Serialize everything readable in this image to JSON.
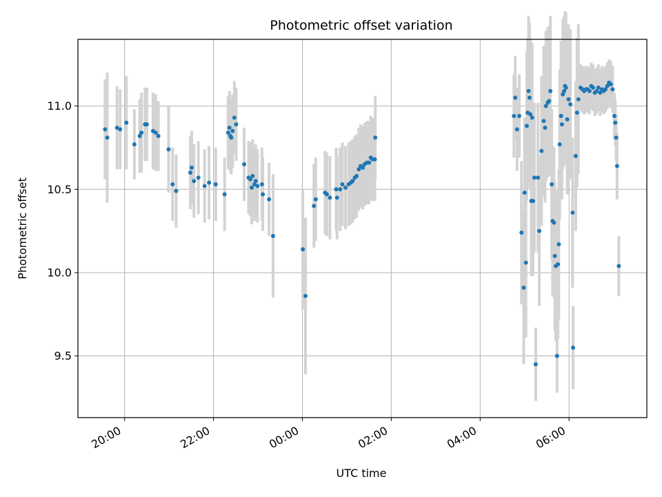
{
  "chart_data": {
    "type": "scatter",
    "title": "Photometric offset variation",
    "xlabel": "UTC time",
    "ylabel": "Photometric offset",
    "x_unit": "UTC time (hours, 20:00 day 1 = 20.0; after midnight = 24 + h)",
    "xlim_hours": [
      18.95,
      31.75
    ],
    "ylim": [
      9.13,
      11.4
    ],
    "x_ticks": [
      {
        "label": "20:00",
        "hour": 20.0
      },
      {
        "label": "22:00",
        "hour": 22.0
      },
      {
        "label": "00:00",
        "hour": 24.0
      },
      {
        "label": "02:00",
        "hour": 26.0
      },
      {
        "label": "04:00",
        "hour": 28.0
      },
      {
        "label": "06:00",
        "hour": 30.0
      }
    ],
    "y_ticks": [
      {
        "label": "9.5",
        "value": 9.5
      },
      {
        "label": "10.0",
        "value": 10.0
      },
      {
        "label": "10.5",
        "value": 10.5
      },
      {
        "label": "11.0",
        "value": 11.0
      }
    ],
    "grid": true,
    "colors": {
      "point": "#1f77b4",
      "errorbar": "#d3d3d3",
      "grid": "#b0b0b0"
    },
    "series": [
      {
        "marker": "point_with_errorbar",
        "points": [
          [
            19.56,
            10.86,
            0.3
          ],
          [
            19.61,
            10.81,
            0.39
          ],
          [
            19.83,
            10.87,
            0.25
          ],
          [
            19.9,
            10.86,
            0.24
          ],
          [
            20.04,
            10.9,
            0.28
          ],
          [
            20.22,
            10.77,
            0.21
          ],
          [
            20.34,
            10.82,
            0.22
          ],
          [
            20.38,
            10.84,
            0.24
          ],
          [
            20.46,
            10.89,
            0.22
          ],
          [
            20.5,
            10.89,
            0.22
          ],
          [
            20.64,
            10.85,
            0.23
          ],
          [
            20.7,
            10.84,
            0.23
          ],
          [
            20.76,
            10.82,
            0.21
          ],
          [
            20.99,
            10.74,
            0.26
          ],
          [
            21.08,
            10.53,
            0.22
          ],
          [
            21.16,
            10.49,
            0.22
          ],
          [
            21.48,
            10.6,
            0.22
          ],
          [
            21.51,
            10.63,
            0.22
          ],
          [
            21.56,
            10.55,
            0.22
          ],
          [
            21.66,
            10.57,
            0.22
          ],
          [
            21.8,
            10.52,
            0.22
          ],
          [
            21.9,
            10.54,
            0.22
          ],
          [
            22.05,
            10.53,
            0.22
          ],
          [
            22.25,
            10.47,
            0.22
          ],
          [
            22.33,
            10.84,
            0.22
          ],
          [
            22.36,
            10.87,
            0.22
          ],
          [
            22.38,
            10.82,
            0.22
          ],
          [
            22.4,
            10.81,
            0.22
          ],
          [
            22.43,
            10.85,
            0.22
          ],
          [
            22.47,
            10.93,
            0.22
          ],
          [
            22.51,
            10.89,
            0.22
          ],
          [
            22.69,
            10.65,
            0.22
          ],
          [
            22.79,
            10.57,
            0.22
          ],
          [
            22.83,
            10.56,
            0.22
          ],
          [
            22.86,
            10.51,
            0.22
          ],
          [
            22.88,
            10.58,
            0.22
          ],
          [
            22.92,
            10.53,
            0.22
          ],
          [
            22.95,
            10.55,
            0.22
          ],
          [
            22.99,
            10.52,
            0.22
          ],
          [
            23.09,
            10.53,
            0.22
          ],
          [
            23.11,
            10.47,
            0.22
          ],
          [
            23.25,
            10.44,
            0.22
          ],
          [
            23.34,
            10.22,
            0.37
          ],
          [
            24.01,
            10.14,
            0.36
          ],
          [
            24.07,
            9.86,
            0.47
          ],
          [
            24.26,
            10.4,
            0.25
          ],
          [
            24.3,
            10.44,
            0.25
          ],
          [
            24.51,
            10.48,
            0.25
          ],
          [
            24.55,
            10.47,
            0.25
          ],
          [
            24.62,
            10.45,
            0.25
          ],
          [
            24.76,
            10.5,
            0.25
          ],
          [
            24.78,
            10.45,
            0.25
          ],
          [
            24.85,
            10.5,
            0.25
          ],
          [
            24.9,
            10.53,
            0.25
          ],
          [
            24.97,
            10.51,
            0.25
          ],
          [
            25.04,
            10.53,
            0.25
          ],
          [
            25.09,
            10.54,
            0.25
          ],
          [
            25.13,
            10.55,
            0.25
          ],
          [
            25.18,
            10.57,
            0.25
          ],
          [
            25.22,
            10.58,
            0.25
          ],
          [
            25.27,
            10.62,
            0.25
          ],
          [
            25.31,
            10.64,
            0.25
          ],
          [
            25.36,
            10.63,
            0.25
          ],
          [
            25.4,
            10.65,
            0.25
          ],
          [
            25.45,
            10.66,
            0.25
          ],
          [
            25.5,
            10.66,
            0.25
          ],
          [
            25.54,
            10.69,
            0.25
          ],
          [
            25.58,
            10.68,
            0.25
          ],
          [
            25.63,
            10.68,
            0.25
          ],
          [
            25.64,
            10.81,
            0.25
          ],
          [
            28.76,
            10.94,
            0.25
          ],
          [
            28.79,
            11.05,
            0.25
          ],
          [
            28.83,
            10.86,
            0.25
          ],
          [
            28.88,
            10.94,
            0.25
          ],
          [
            28.93,
            10.24,
            0.43
          ],
          [
            28.98,
            9.91,
            0.46
          ],
          [
            29.0,
            10.48,
            0.45
          ],
          [
            29.03,
            10.06,
            0.45
          ],
          [
            29.05,
            10.88,
            0.45
          ],
          [
            29.07,
            10.96,
            0.45
          ],
          [
            29.09,
            11.09,
            0.45
          ],
          [
            29.11,
            11.05,
            0.45
          ],
          [
            29.13,
            10.95,
            0.45
          ],
          [
            29.15,
            10.43,
            0.45
          ],
          [
            29.17,
            10.93,
            0.45
          ],
          [
            29.19,
            10.43,
            0.45
          ],
          [
            29.22,
            10.57,
            0.45
          ],
          [
            29.25,
            9.45,
            0.22
          ],
          [
            29.3,
            10.57,
            0.45
          ],
          [
            29.33,
            10.25,
            0.45
          ],
          [
            29.38,
            10.73,
            0.45
          ],
          [
            29.43,
            10.91,
            0.45
          ],
          [
            29.46,
            10.87,
            0.45
          ],
          [
            29.48,
            11.0,
            0.45
          ],
          [
            29.52,
            11.02,
            0.45
          ],
          [
            29.55,
            11.03,
            0.45
          ],
          [
            29.58,
            11.09,
            0.45
          ],
          [
            29.61,
            10.53,
            0.45
          ],
          [
            29.63,
            10.31,
            0.45
          ],
          [
            29.66,
            10.3,
            0.45
          ],
          [
            29.68,
            10.1,
            0.45
          ],
          [
            29.7,
            10.04,
            0.45
          ],
          [
            29.73,
            9.5,
            0.22
          ],
          [
            29.75,
            10.05,
            0.45
          ],
          [
            29.77,
            10.17,
            0.45
          ],
          [
            29.79,
            10.77,
            0.45
          ],
          [
            29.82,
            10.94,
            0.45
          ],
          [
            29.84,
            10.89,
            0.45
          ],
          [
            29.86,
            11.07,
            0.45
          ],
          [
            29.89,
            11.09,
            0.45
          ],
          [
            29.91,
            11.12,
            0.45
          ],
          [
            29.93,
            11.11,
            0.45
          ],
          [
            29.96,
            10.92,
            0.45
          ],
          [
            29.99,
            11.04,
            0.45
          ],
          [
            30.03,
            11.01,
            0.45
          ],
          [
            30.08,
            10.36,
            0.45
          ],
          [
            30.09,
            9.55,
            0.25
          ],
          [
            30.15,
            10.7,
            0.45
          ],
          [
            30.18,
            10.96,
            0.45
          ],
          [
            30.21,
            11.04,
            0.45
          ],
          [
            30.26,
            11.11,
            0.14
          ],
          [
            30.3,
            11.1,
            0.14
          ],
          [
            30.34,
            11.09,
            0.14
          ],
          [
            30.38,
            11.1,
            0.14
          ],
          [
            30.42,
            11.1,
            0.14
          ],
          [
            30.46,
            11.09,
            0.14
          ],
          [
            30.5,
            11.12,
            0.14
          ],
          [
            30.54,
            11.11,
            0.14
          ],
          [
            30.58,
            11.08,
            0.14
          ],
          [
            30.62,
            11.09,
            0.14
          ],
          [
            30.66,
            11.11,
            0.14
          ],
          [
            30.7,
            11.08,
            0.14
          ],
          [
            30.74,
            11.1,
            0.14
          ],
          [
            30.78,
            11.09,
            0.14
          ],
          [
            30.82,
            11.1,
            0.14
          ],
          [
            30.86,
            11.12,
            0.14
          ],
          [
            30.9,
            11.14,
            0.14
          ],
          [
            30.94,
            11.13,
            0.14
          ],
          [
            30.98,
            11.1,
            0.14
          ],
          [
            31.02,
            10.94,
            0.14
          ],
          [
            31.04,
            10.9,
            0.14
          ],
          [
            31.06,
            10.81,
            0.14
          ],
          [
            31.08,
            10.64,
            0.2
          ],
          [
            31.12,
            10.04,
            0.18
          ]
        ]
      }
    ]
  }
}
